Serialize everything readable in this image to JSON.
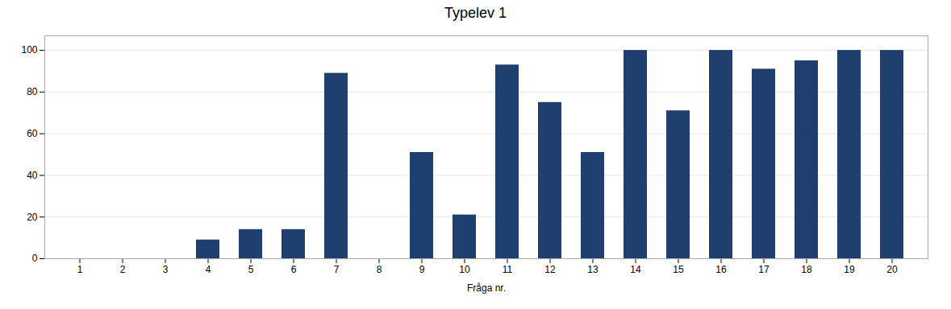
{
  "chart_data": {
    "type": "bar",
    "title": "Typelev 1",
    "xlabel": "Fråga nr.",
    "categories": [
      1,
      2,
      3,
      4,
      5,
      6,
      7,
      8,
      9,
      10,
      11,
      12,
      13,
      14,
      15,
      16,
      17,
      18,
      19,
      20
    ],
    "values": [
      0,
      0,
      0,
      9,
      14,
      14,
      89,
      0,
      51,
      21,
      93,
      75,
      51,
      100,
      71,
      100,
      91,
      95,
      100,
      100
    ],
    "color": "#1F3F6E",
    "ylim": [
      0,
      107
    ],
    "yticks": [
      0,
      20,
      40,
      60,
      80,
      100
    ],
    "grid": true
  }
}
